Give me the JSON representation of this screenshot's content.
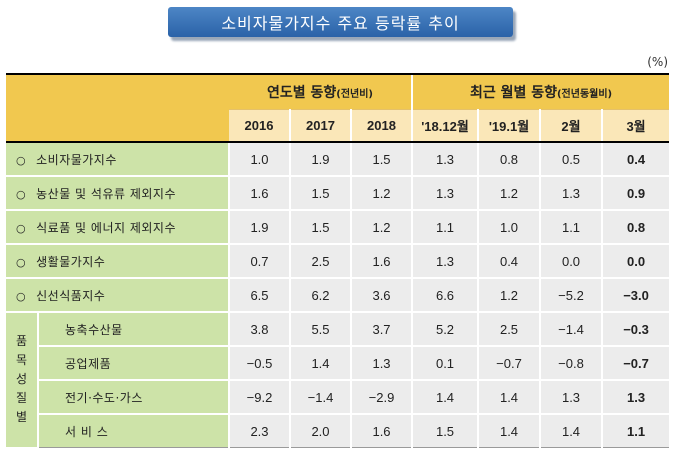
{
  "title": "소비자물가지수 주요 등락률 추이",
  "unit": "(%)",
  "header": {
    "group1": "연도별 동향",
    "group1_note": "(전년비)",
    "group2": "최근 월별 동향",
    "group2_note": "(전년동월비)",
    "columns": [
      "2016",
      "2017",
      "2018",
      "'18.12월",
      "'19.1월",
      "2월",
      "3월"
    ]
  },
  "bullet": "○",
  "vertical_label": "품목성질별",
  "rows": [
    {
      "label": "소비자물가지수",
      "values": [
        "1.0",
        "1.9",
        "1.5",
        "1.3",
        "0.8",
        "0.5",
        "0.4"
      ]
    },
    {
      "label": "농산물 및 석유류 제외지수",
      "values": [
        "1.6",
        "1.5",
        "1.2",
        "1.3",
        "1.2",
        "1.3",
        "0.9"
      ]
    },
    {
      "label": "식료품 및 에너지 제외지수",
      "values": [
        "1.9",
        "1.5",
        "1.2",
        "1.1",
        "1.0",
        "1.1",
        "0.8"
      ]
    },
    {
      "label": "생활물가지수",
      "values": [
        "0.7",
        "2.5",
        "1.6",
        "1.3",
        "0.4",
        "0.0",
        "0.0"
      ]
    },
    {
      "label": "신선식품지수",
      "values": [
        "6.5",
        "6.2",
        "3.6",
        "6.6",
        "1.2",
        "−5.2",
        "−3.0"
      ]
    }
  ],
  "sub_rows": [
    {
      "label": "농축수산물",
      "values": [
        "3.8",
        "5.5",
        "3.7",
        "5.2",
        "2.5",
        "−1.4",
        "−0.3"
      ]
    },
    {
      "label": "공업제품",
      "values": [
        "−0.5",
        "1.4",
        "1.3",
        "0.1",
        "−0.7",
        "−0.8",
        "−0.7"
      ]
    },
    {
      "label": "전기·수도·가스",
      "values": [
        "−9.2",
        "−1.4",
        "−2.9",
        "1.4",
        "1.4",
        "1.3",
        "1.3"
      ]
    },
    {
      "label": "서 비 스",
      "values": [
        "2.3",
        "2.0",
        "1.6",
        "1.5",
        "1.4",
        "1.4",
        "1.1"
      ]
    }
  ]
}
